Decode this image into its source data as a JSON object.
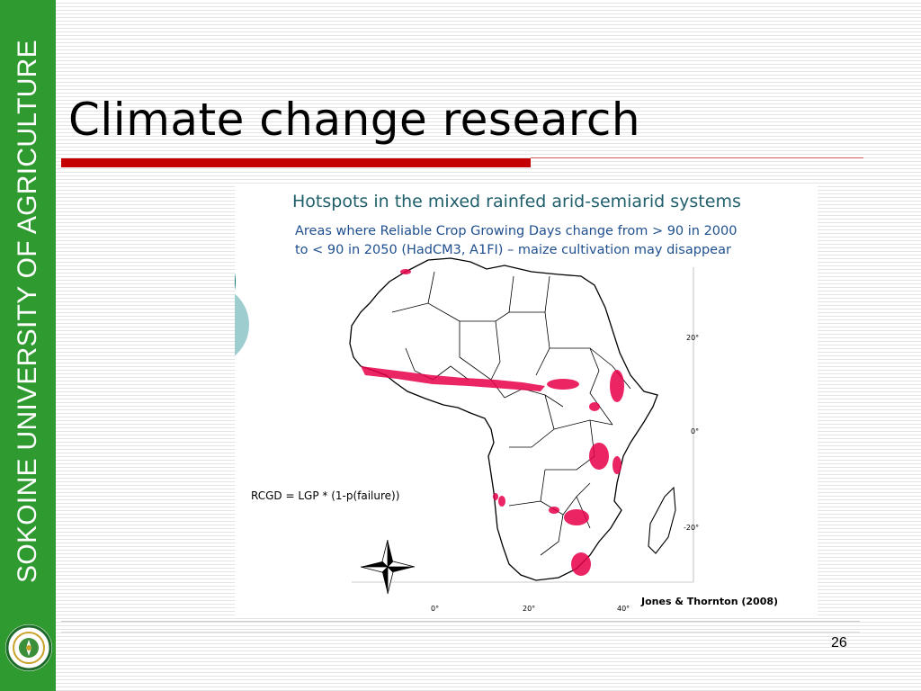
{
  "sidebar": {
    "text": "SOKOINE UNIVERSITY OF AGRICULTURE",
    "color": "#2f9a2f"
  },
  "slide": {
    "title": "Climate change research",
    "page_number": "26",
    "accent_red": "#c40000"
  },
  "figure": {
    "title": "Hotspots in the mixed rainfed arid-semiarid systems",
    "subtitle_line1": "Areas where Reliable Crop Growing Days change from > 90 in 2000",
    "subtitle_line2": "to < 90 in 2050 (HadCM3, A1FI) – maize cultivation may disappear",
    "formula": "RCGD = LGP * (1-p(failure))",
    "credit": "Jones & Thornton (2008)",
    "lat_labels": [
      "20°",
      "0°",
      "-20°"
    ],
    "lon_labels": [
      "0°",
      "20°",
      "40°"
    ],
    "hotspot_color": "#e8004a",
    "compass_icon": "compass-rose-icon"
  }
}
